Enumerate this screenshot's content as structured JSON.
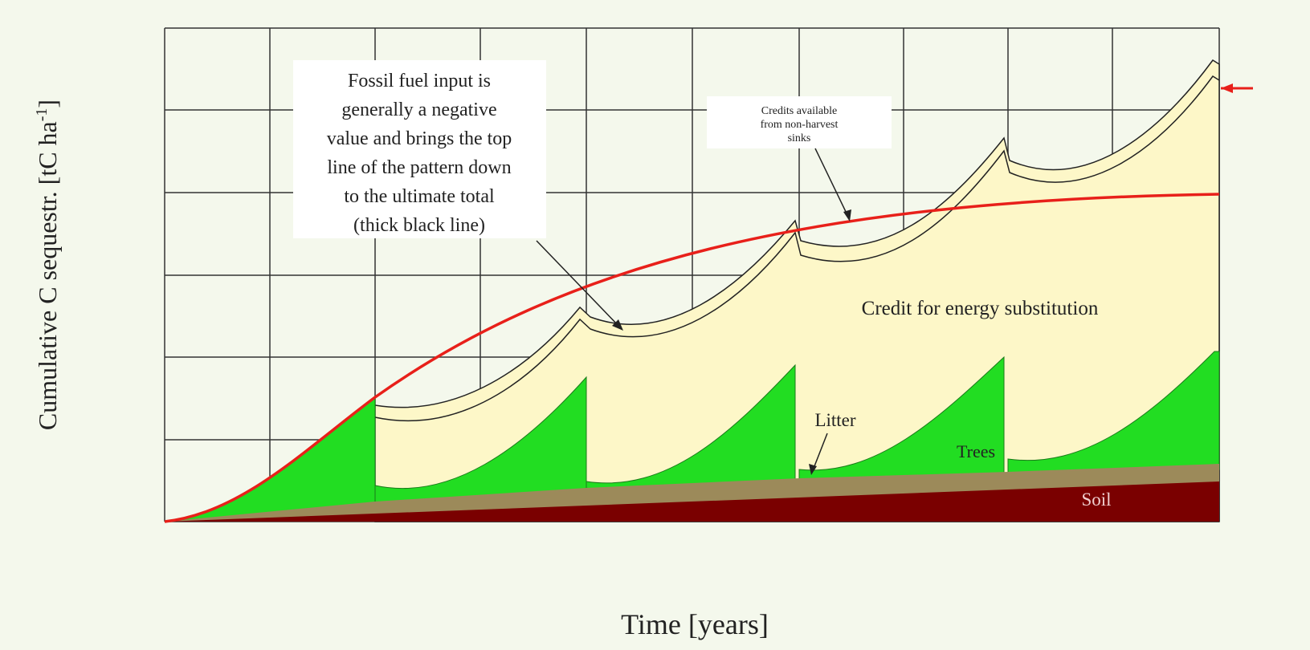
{
  "axes": {
    "y_label": {
      "text": "Cumulative C sequestr. [tC ha",
      "superscript": "-1",
      "suffix": "]"
    },
    "x_label": "Time [years]"
  },
  "annotations": {
    "fossil_fuel": [
      "Fossil fuel input is",
      "generally a negative",
      "value and brings the top",
      "line of the pattern down",
      "to the ultimate total",
      "(thick black line)"
    ],
    "credits_sinks": [
      "Credits available",
      "from non-harvest",
      "sinks"
    ],
    "energy_substitution": "Credit for energy substitution",
    "litter": "Litter",
    "trees": "Trees",
    "soil": "Soil"
  }
}
